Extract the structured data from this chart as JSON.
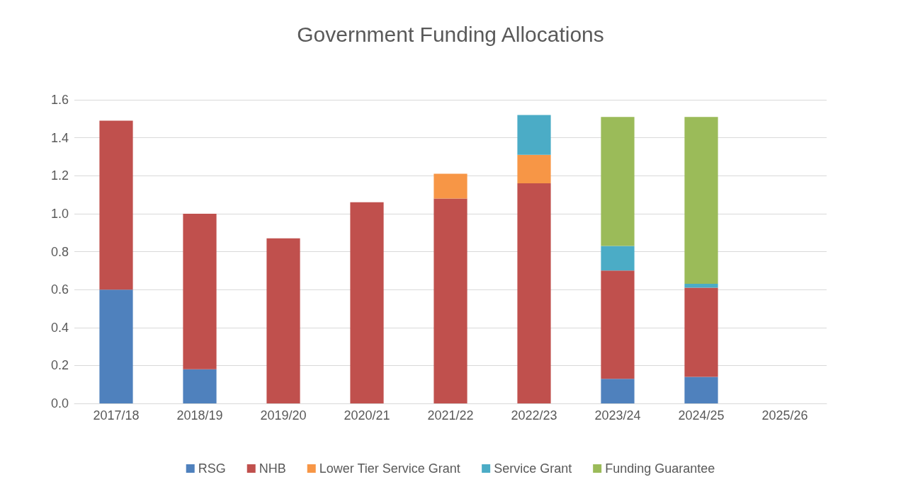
{
  "chart_data": {
    "type": "bar",
    "title": "Government Funding Allocations",
    "stacked": true,
    "grid": "y",
    "legend": "bottom",
    "categories": [
      "2017/18",
      "2018/19",
      "2019/20",
      "2020/21",
      "2021/22",
      "2022/23",
      "2023/24",
      "2024/25",
      "2025/26"
    ],
    "ylim": [
      0,
      1.6
    ],
    "yticks": [
      {
        "value": 0,
        "label": "0.0"
      },
      0.2,
      0.4,
      0.6,
      0.8,
      {
        "value": 1,
        "label": "1.0"
      },
      1.2,
      1.4,
      1.6
    ],
    "series": [
      {
        "name": "RSG",
        "color": "#4f81bd",
        "values": [
          0.6,
          0.18,
          0,
          0,
          0,
          0,
          0.13,
          0.14,
          0
        ]
      },
      {
        "name": "NHB",
        "color": "#c0504d",
        "values": [
          0.89,
          0.82,
          0.87,
          1.06,
          1.08,
          1.16,
          0.57,
          0.47,
          0
        ]
      },
      {
        "name": "Lower Tier Service Grant",
        "color": "#f79646",
        "values": [
          0,
          0,
          0,
          0,
          0.13,
          0.15,
          0,
          0,
          0
        ]
      },
      {
        "name": "Service Grant",
        "color": "#4bacc6",
        "values": [
          0,
          0,
          0,
          0,
          0,
          0.21,
          0.13,
          0.02,
          0
        ]
      },
      {
        "name": "Funding Guarantee",
        "color": "#9bbb59",
        "values": [
          0,
          0,
          0,
          0,
          0,
          0,
          0.68,
          0.88,
          0
        ]
      }
    ]
  }
}
